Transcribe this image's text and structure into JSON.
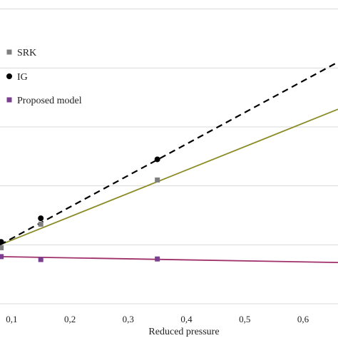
{
  "chart_data": {
    "type": "scatter",
    "title": "",
    "xlabel": "Reduced pressure",
    "ylabel": "",
    "xlim": [
      0.08,
      0.66
    ],
    "ylim": [
      0,
      6
    ],
    "x_ticks": [
      0.1,
      0.2,
      0.3,
      0.4,
      0.5,
      0.6
    ],
    "x_tick_labels": [
      "0,1",
      "0,2",
      "0,3",
      "0,4",
      "0,5",
      "0,6"
    ],
    "y_grid": [
      1,
      2,
      3,
      4,
      5,
      6
    ],
    "grid": "horizontal",
    "legend_position": "top-left",
    "series": [
      {
        "name": "SRK",
        "marker": "square",
        "color": "#7f7f7f",
        "x": [
          0.082,
          0.15,
          0.35
        ],
        "y": [
          0.95,
          1.35,
          2.1
        ],
        "fit": {
          "style": "solid",
          "color": "#8b8b2a",
          "x": [
            0.08,
            0.66
          ],
          "y": [
            1.0,
            3.3
          ]
        }
      },
      {
        "name": "IG",
        "marker": "circle",
        "color": "#000000",
        "x": [
          0.082,
          0.15,
          0.35
        ],
        "y": [
          1.05,
          1.45,
          2.45
        ],
        "fit": {
          "style": "dashed",
          "color": "#000000",
          "x": [
            0.08,
            0.66
          ],
          "y": [
            1.0,
            4.1
          ]
        }
      },
      {
        "name": "Proposed model",
        "marker": "square",
        "color": "#7a3f8f",
        "x": [
          0.082,
          0.15,
          0.35
        ],
        "y": [
          0.8,
          0.75,
          0.76
        ],
        "fit": {
          "style": "solid",
          "color": "#a0306a",
          "x": [
            0.08,
            0.66
          ],
          "y": [
            0.8,
            0.7
          ]
        }
      }
    ]
  }
}
